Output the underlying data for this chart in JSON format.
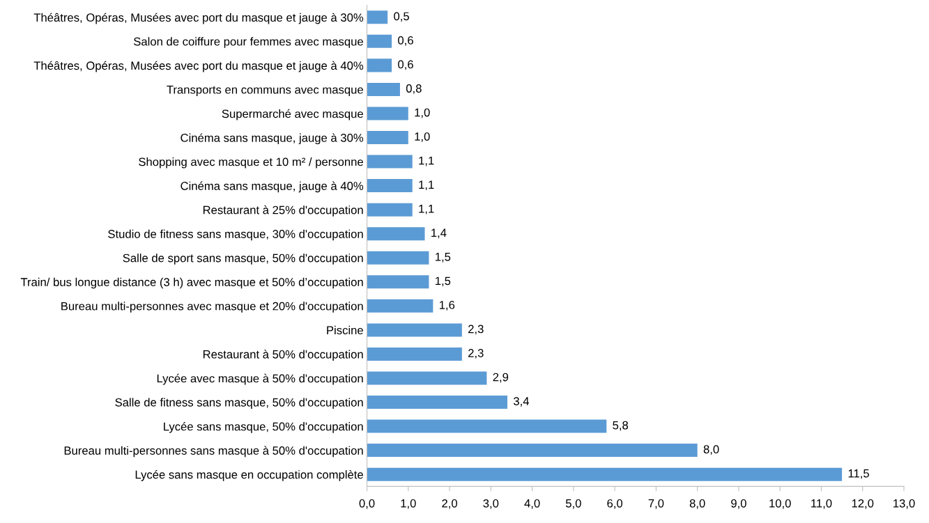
{
  "chart_data": {
    "type": "bar",
    "orientation": "horizontal",
    "categories": [
      "Théâtres, Opéras, Musées avec port du masque et jauge à 30%",
      "Salon de coiffure pour femmes avec masque",
      "Théâtres, Opéras, Musées avec port du masque et jauge à 40%",
      "Transports en communs avec masque",
      "Supermarché avec masque",
      "Cinéma sans masque, jauge à 30%",
      "Shopping avec masque et 10 m² / personne",
      "Cinéma sans masque, jauge à 40%",
      "Restaurant à 25% d'occupation",
      "Studio de fitness sans masque, 30% d'occupation",
      "Salle de sport sans masque, 50% d'occupation",
      "Train/ bus longue distance (3 h) avec masque et 50% d’occupation",
      "Bureau multi-personnes avec masque et 20% d'occupation",
      "Piscine",
      "Restaurant à 50% d'occupation",
      "Lycée avec masque à 50% d'occupation",
      "Salle de fitness sans masque, 50% d'occupation",
      "Lycée sans masque, 50% d'occupation",
      "Bureau multi-personnes sans masque à 50% d'occupation",
      "Lycée sans masque en occupation complète"
    ],
    "values": [
      0.5,
      0.6,
      0.6,
      0.8,
      1.0,
      1.0,
      1.1,
      1.1,
      1.1,
      1.4,
      1.5,
      1.5,
      1.6,
      2.3,
      2.3,
      2.9,
      3.4,
      5.8,
      8.0,
      11.5
    ],
    "value_labels": [
      "0,5",
      "0,6",
      "0,6",
      "0,8",
      "1,0",
      "1,0",
      "1,1",
      "1,1",
      "1,1",
      "1,4",
      "1,5",
      "1,5",
      "1,6",
      "2,3",
      "2,3",
      "2,9",
      "3,4",
      "5,8",
      "8,0",
      "11,5"
    ],
    "color": "#5b9bd5",
    "xlim": [
      0,
      13
    ],
    "xticks": [
      {
        "value": 0,
        "label": "0,0"
      },
      {
        "value": 1,
        "label": "1,0"
      },
      {
        "value": 2,
        "label": "2,0"
      },
      {
        "value": 3,
        "label": "3,0"
      },
      {
        "value": 4,
        "label": "4,0"
      },
      {
        "value": 5,
        "label": "5,0"
      },
      {
        "value": 6,
        "label": "6,0"
      },
      {
        "value": 7,
        "label": "7,0"
      },
      {
        "value": 8,
        "label": "8,0"
      },
      {
        "value": 9,
        "label": "9,0"
      },
      {
        "value": 10,
        "label": "10,0"
      },
      {
        "value": 11,
        "label": "11,0"
      },
      {
        "value": 12,
        "label": "12,0"
      },
      {
        "value": 13,
        "label": "13,0"
      }
    ],
    "grid": false,
    "legend": false
  }
}
